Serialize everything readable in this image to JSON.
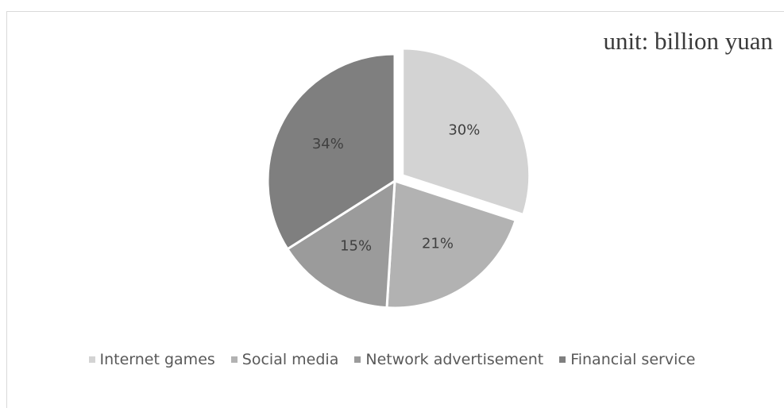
{
  "chart_data": {
    "type": "pie",
    "title": "",
    "unit_note": "unit: billion yuan",
    "categories": [
      "Internet games",
      "Social media",
      "Network advertisement",
      "Financial service"
    ],
    "values": [
      30,
      21,
      15,
      34
    ],
    "labels": [
      "30%",
      "21%",
      "15%",
      "34%"
    ],
    "colors": [
      "#d3d3d3",
      "#b2b2b2",
      "#9b9b9b",
      "#7f7f7f"
    ],
    "exploded": [
      true,
      false,
      false,
      false
    ],
    "legend_position": "bottom"
  }
}
